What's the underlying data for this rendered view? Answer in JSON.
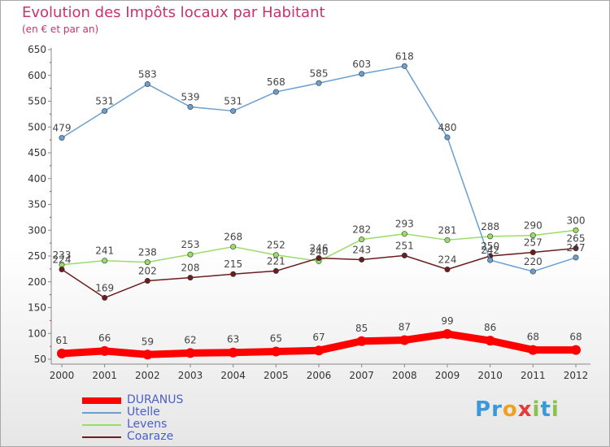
{
  "chart_data": {
    "type": "line",
    "title": "Evolution des Impôts locaux par Habitant",
    "subtitle": "(en € et par an)",
    "categories": [
      "2000",
      "2001",
      "2002",
      "2003",
      "2004",
      "2005",
      "2006",
      "2007",
      "2008",
      "2009",
      "2010",
      "2011",
      "2012"
    ],
    "ylim": [
      50,
      650
    ],
    "yticks": [
      50,
      100,
      150,
      200,
      250,
      300,
      350,
      400,
      450,
      500,
      550,
      600,
      650
    ],
    "grid": false,
    "legend_position": "bottom-left",
    "series": [
      {
        "name": "DURANUS",
        "color": "#ff0000",
        "values": [
          61,
          66,
          59,
          62,
          63,
          65,
          67,
          85,
          87,
          99,
          86,
          68,
          68
        ]
      },
      {
        "name": "Utelle",
        "color": "#6a9fd0",
        "values": [
          479,
          531,
          583,
          539,
          531,
          568,
          585,
          603,
          618,
          480,
          242,
          220,
          247
        ]
      },
      {
        "name": "Levens",
        "color": "#99dd66",
        "values": [
          233,
          241,
          238,
          253,
          268,
          252,
          240,
          282,
          293,
          281,
          288,
          290,
          300
        ]
      },
      {
        "name": "Coaraze",
        "color": "#6b1e1e",
        "values": [
          224,
          169,
          202,
          208,
          215,
          221,
          246,
          243,
          251,
          224,
          250,
          257,
          265
        ]
      }
    ],
    "labels": [
      [
        [
          61,
          61
        ],
        [
          66,
          66
        ],
        [
          59,
          59
        ],
        [
          62,
          62
        ],
        [
          63,
          63
        ],
        [
          65,
          65
        ],
        [
          67,
          67
        ],
        [
          85,
          85
        ],
        [
          87,
          87
        ],
        [
          99,
          99
        ],
        [
          86,
          86
        ],
        [
          68,
          68
        ],
        [
          68,
          68
        ]
      ],
      [
        [
          479,
          479
        ],
        [
          531,
          531
        ],
        [
          583,
          583
        ],
        [
          539,
          539
        ],
        [
          531,
          531
        ],
        [
          568,
          568
        ],
        [
          585,
          585
        ],
        [
          603,
          603
        ],
        [
          618,
          618
        ],
        [
          480,
          480
        ],
        [
          242,
          ""
        ],
        [
          220,
          220
        ],
        [
          247,
          ""
        ]
      ],
      [
        [
          233,
          233
        ],
        [
          241,
          241
        ],
        [
          238,
          238
        ],
        [
          253,
          253
        ],
        [
          268,
          268
        ],
        [
          252,
          252
        ],
        [
          240,
          240
        ],
        [
          282,
          282
        ],
        [
          293,
          293
        ],
        [
          281,
          281
        ],
        [
          288,
          288
        ],
        [
          290,
          290
        ],
        [
          300,
          300
        ]
      ],
      [
        [
          224,
          224
        ],
        [
          169,
          169
        ],
        [
          202,
          202
        ],
        [
          208,
          208
        ],
        [
          215,
          215
        ],
        [
          221,
          221
        ],
        [
          246,
          246
        ],
        [
          243,
          243
        ],
        [
          251,
          251
        ],
        [
          224,
          224
        ],
        [
          250,
          250
        ],
        [
          257,
          257
        ],
        [
          265,
          265
        ]
      ]
    ],
    "extra_labels": [
      "242",
      "247"
    ]
  },
  "logo": {
    "text": "Proxiti",
    "colors": [
      "#3a9ad9",
      "#3a9ad9",
      "#f0a020",
      "#e83a3a",
      "#8bc34a",
      "#3a9ad9",
      "#8bc34a"
    ]
  }
}
